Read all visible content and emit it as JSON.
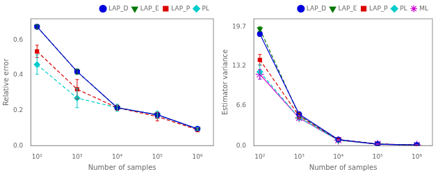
{
  "chart_data": [
    {
      "type": "line",
      "x": [
        100,
        1000,
        10000,
        100000,
        1000000
      ],
      "log": "x",
      "xlabel": "Number of samples",
      "ylabel": "Relative error",
      "xlim": [
        70,
        2500000
      ],
      "xticks": [
        {
          "value": 100,
          "label": "10²"
        },
        {
          "value": 1000,
          "label": "10³"
        },
        {
          "value": 10000,
          "label": "10⁴"
        },
        {
          "value": 100000,
          "label": "10⁵"
        },
        {
          "value": 1000000,
          "label": "10⁶"
        }
      ],
      "ylim": [
        0.0,
        0.72
      ],
      "yticks": [
        {
          "value": 0,
          "label": "0.0"
        },
        0.2,
        0.4,
        0.6
      ],
      "grid": false,
      "legend": "upper right",
      "series": [
        {
          "name": "LAP_D",
          "color": "#0000dd",
          "marker": "circle",
          "line_style": "solid",
          "values": [
            0.675,
            0.42,
            0.215,
            0.175,
            0.095
          ],
          "errors": [
            0.008,
            0.012,
            0.007,
            0.005,
            0.003
          ]
        },
        {
          "name": "LAP_E",
          "color": "#007700",
          "marker": "triangle_down",
          "line_style": "dashed",
          "values": [
            0.675,
            0.42,
            0.215,
            0.175,
            0.095
          ],
          "errors": [
            0.01,
            0.015,
            0.008,
            0.006,
            0.003
          ]
        },
        {
          "name": "LAP_P",
          "color": "#dd0000",
          "marker": "square",
          "line_style": "dashed",
          "values": [
            0.535,
            0.32,
            0.215,
            0.165,
            0.09
          ],
          "errors": [
            0.035,
            0.055,
            0.015,
            0.025,
            0.01
          ]
        },
        {
          "name": "PL",
          "color": "#00cccc",
          "marker": "diamond",
          "line_style": "dashed",
          "values": [
            0.46,
            0.27,
            0.215,
            0.175,
            0.095
          ],
          "errors": [
            0.055,
            0.055,
            0.02,
            0.02,
            0.008
          ]
        }
      ]
    },
    {
      "type": "line",
      "x": [
        100,
        1000,
        10000,
        100000,
        1000000
      ],
      "log": "x",
      "xlabel": "Number of samples",
      "ylabel": "Estimator variance",
      "xlim": [
        70,
        2500000
      ],
      "xticks": [
        {
          "value": 100,
          "label": "10²"
        },
        {
          "value": 1000,
          "label": "10³"
        },
        {
          "value": 10000,
          "label": "10⁴"
        },
        {
          "value": 100000,
          "label": "10⁵"
        },
        {
          "value": 1000000,
          "label": "10⁶"
        }
      ],
      "ylim": [
        0.0,
        21.0
      ],
      "yticks": [
        {
          "value": 0,
          "label": "0.0"
        },
        6.6,
        13.2,
        19.7
      ],
      "grid": false,
      "legend": "upper right",
      "series": [
        {
          "name": "LAP_D",
          "color": "#0000dd",
          "marker": "circle",
          "line_style": "solid",
          "values": [
            18.5,
            5.2,
            1.0,
            0.25,
            0.1
          ],
          "errors": [
            0.4,
            0.35,
            0.12,
            0.03,
            0.015
          ]
        },
        {
          "name": "LAP_E",
          "color": "#007700",
          "marker": "triangle_down",
          "line_style": "dashed",
          "values": [
            19.3,
            5.0,
            0.95,
            0.25,
            0.1
          ],
          "errors": [
            0.4,
            0.35,
            0.12,
            0.03,
            0.015
          ]
        },
        {
          "name": "LAP_P",
          "color": "#dd0000",
          "marker": "square",
          "line_style": "dashed",
          "values": [
            14.2,
            4.9,
            1.0,
            0.28,
            0.1
          ],
          "errors": [
            0.9,
            0.45,
            0.18,
            0.05,
            0.02
          ]
        },
        {
          "name": "PL",
          "color": "#00cccc",
          "marker": "diamond",
          "line_style": "dashed",
          "values": [
            12.2,
            4.6,
            0.9,
            0.25,
            0.1
          ],
          "errors": [
            1.2,
            0.35,
            0.1,
            0.03,
            0.012
          ]
        },
        {
          "name": "ML",
          "color": "#cc00cc",
          "marker": "star",
          "line_style": "solid",
          "values": [
            11.8,
            4.6,
            0.9,
            0.25,
            0.1
          ],
          "errors": [
            0.8,
            0.3,
            0.08,
            0.02,
            0.008
          ]
        }
      ]
    }
  ]
}
